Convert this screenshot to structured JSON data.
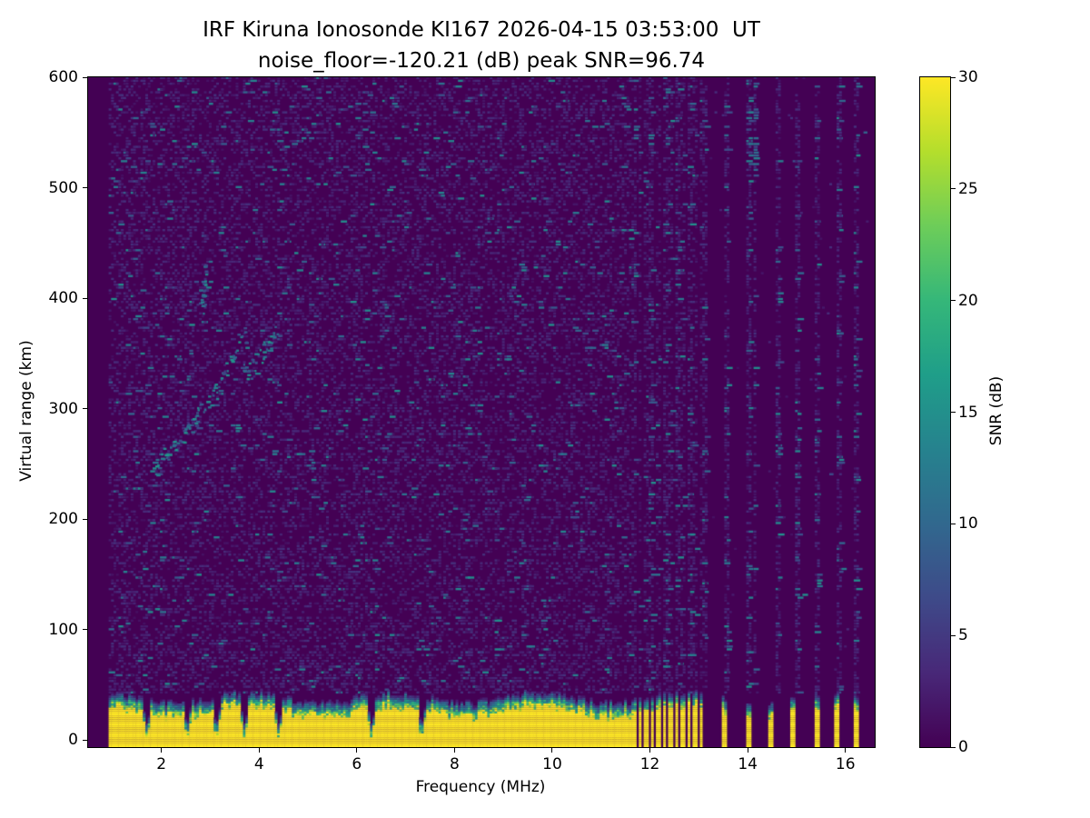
{
  "title": {
    "line1": "IRF Kiruna Ionosonde KI167 2026-04-15 03:53:00  UT",
    "line2": "noise_floor=-120.21 (dB) peak SNR=96.74"
  },
  "chart_data": {
    "type": "heatmap",
    "title": "IRF Kiruna Ionosonde KI167 2026-04-15 03:53:00 UT",
    "subtitle": "noise_floor=-120.21 (dB) peak SNR=96.74",
    "station": "IRF Kiruna",
    "instrument": "Ionosonde KI167",
    "timestamp_ut": "2026-04-15 03:53:00",
    "noise_floor_db": -120.21,
    "peak_snr_db": 96.74,
    "xlabel": "Frequency (MHz)",
    "ylabel": "Virtual range (km)",
    "xlim": [
      0.5,
      16.6
    ],
    "ylim": [
      -6.5,
      600
    ],
    "x_ticks": [
      2,
      4,
      6,
      8,
      10,
      12,
      14,
      16
    ],
    "y_ticks": [
      0,
      100,
      200,
      300,
      400,
      500,
      600
    ],
    "grid": false,
    "colorbar": {
      "label": "SNR (dB)",
      "min": 0,
      "max": 30,
      "ticks": [
        0,
        5,
        10,
        15,
        20,
        25,
        30
      ],
      "colormap": "viridis",
      "viridis_stops": [
        "#440154",
        "#482878",
        "#3e4a89",
        "#31688e",
        "#26828e",
        "#1f9e89",
        "#35b779",
        "#6dcd59",
        "#b4de2c",
        "#fde725"
      ]
    },
    "features": {
      "background_snr_db": 0,
      "data_fmin_mhz": 0.92,
      "data_fmax_mhz": 16.45,
      "blank_start_mhz": 11.62,
      "dense_clutter_end_mhz": 13.08,
      "clutter_gap_period_mhz": 0.125,
      "ground_clutter": {
        "snr_db": 30,
        "solid_top_km": 24,
        "fuzz_top_km": 42
      },
      "clutter_notch_mhz": [
        1.68,
        2.5,
        3.1,
        3.68,
        4.38,
        6.28,
        7.3
      ],
      "isolated_clutter_mhz": [
        13.52,
        13.98,
        14.45,
        14.92,
        15.38,
        15.82,
        16.22
      ],
      "rfi_columns_mhz": [
        11.66,
        12.0,
        12.3,
        12.55,
        12.8,
        13.1,
        13.55,
        14.0,
        14.12,
        14.6,
        15.0,
        15.4,
        15.85,
        16.2
      ],
      "rfi_patch": {
        "f_mhz": 14.05,
        "r0_km": 510,
        "r1_km": 600
      }
    },
    "echo_trace": {
      "description": "sporadic ionospheric echo trace, teal speckles 6-16 dB",
      "points": [
        [
          1.92,
          246
        ],
        [
          2.0,
          251
        ],
        [
          2.08,
          255
        ],
        [
          2.16,
          259
        ],
        [
          2.25,
          263
        ],
        [
          2.33,
          267
        ],
        [
          2.41,
          272
        ],
        [
          2.5,
          277
        ],
        [
          2.58,
          282
        ],
        [
          2.66,
          287
        ],
        [
          2.75,
          292
        ],
        [
          2.83,
          297
        ],
        [
          2.91,
          302
        ],
        [
          3.0,
          308
        ],
        [
          3.08,
          314
        ],
        [
          3.16,
          320
        ],
        [
          3.25,
          327
        ],
        [
          3.33,
          334
        ],
        [
          3.41,
          342
        ],
        [
          3.5,
          350
        ],
        [
          3.58,
          358
        ],
        [
          3.66,
          365
        ],
        [
          3.7,
          336
        ],
        [
          3.78,
          333
        ],
        [
          3.86,
          337
        ],
        [
          3.95,
          342
        ],
        [
          4.03,
          348
        ],
        [
          4.11,
          353
        ],
        [
          4.2,
          359
        ],
        [
          4.28,
          365
        ],
        [
          4.36,
          371
        ],
        [
          2.8,
          390
        ],
        [
          2.83,
          399
        ],
        [
          2.86,
          408
        ],
        [
          2.88,
          416
        ],
        [
          2.84,
          422
        ]
      ]
    }
  }
}
